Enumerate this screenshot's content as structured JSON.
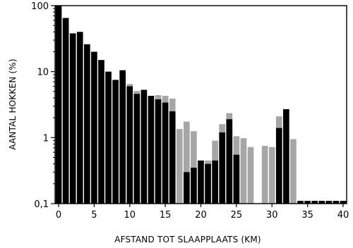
{
  "chart_data": {
    "type": "bar",
    "stacked": true,
    "xlabel": "AFSTAND TOT SLAAPPLAATS (KM)",
    "ylabel": "AANTAL HOKKEN (%)",
    "yscale": "log",
    "ylim": [
      0.1,
      100
    ],
    "xlim": [
      -0.5,
      40.5
    ],
    "x_ticks": [
      0,
      5,
      10,
      15,
      20,
      25,
      30,
      35,
      40
    ],
    "y_ticks": [
      0.1,
      1,
      10,
      100
    ],
    "y_tick_labels": [
      "0,1",
      "1",
      "10",
      "100"
    ],
    "grid": false,
    "x": [
      0,
      1,
      2,
      3,
      4,
      5,
      6,
      7,
      8,
      9,
      10,
      11,
      12,
      13,
      14,
      15,
      16,
      17,
      18,
      19,
      20,
      21,
      22,
      23,
      24,
      25,
      26,
      27,
      28,
      29,
      30,
      31,
      32,
      33,
      34,
      35,
      36,
      37,
      38,
      39,
      40
    ],
    "series": [
      {
        "color": "#000000",
        "values": [
          100,
          65,
          38,
          40,
          26,
          20,
          15,
          10,
          7.5,
          10.5,
          6,
          4.6,
          5.3,
          4.3,
          3.8,
          3.4,
          2.5,
          0,
          0.3,
          0.35,
          0.45,
          0.4,
          0.45,
          1.2,
          1.9,
          0.55,
          0,
          0,
          0,
          0,
          0,
          1.4,
          2.7,
          0,
          0.11,
          0.11,
          0.11,
          0.11,
          0.11,
          0.11,
          0.11
        ]
      },
      {
        "color": "#a6a6a6",
        "values": [
          100,
          65,
          38,
          40,
          26,
          20,
          15,
          10,
          7.5,
          10.5,
          6.5,
          5.1,
          5.3,
          4.3,
          4.4,
          4.3,
          3.9,
          1.35,
          1.75,
          1.25,
          0.45,
          0.45,
          0.9,
          1.6,
          2.35,
          1.05,
          0.98,
          0.72,
          0.1,
          0.75,
          0.72,
          2.1,
          2.7,
          0.95,
          0.11,
          0.11,
          0.11,
          0.11,
          0.11,
          0.11,
          0.11
        ]
      }
    ]
  }
}
